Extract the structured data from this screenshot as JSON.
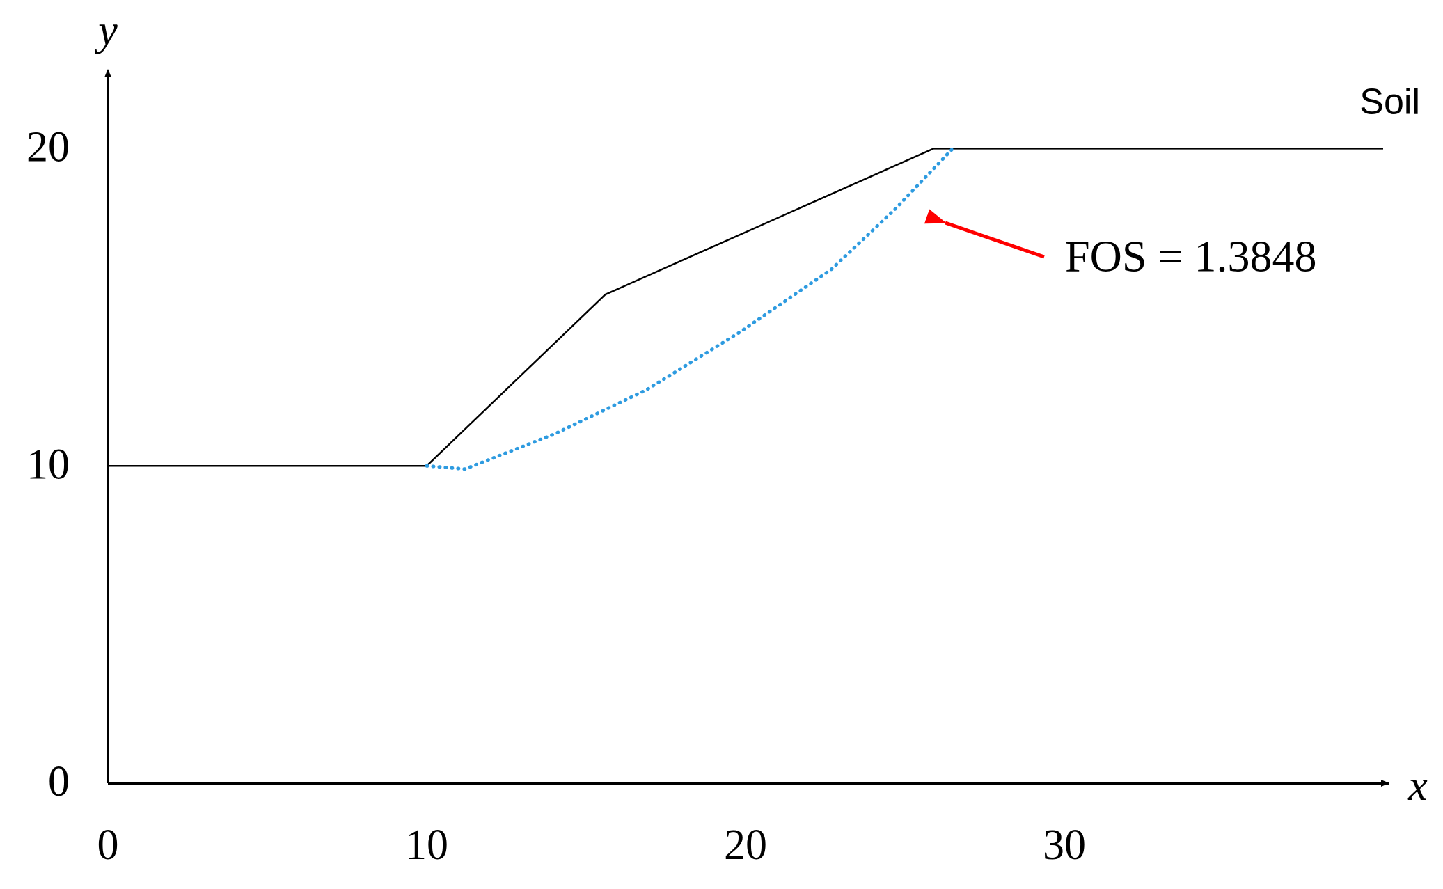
{
  "chart_data": {
    "type": "line",
    "xlabel": "x",
    "ylabel": "y",
    "xlim": [
      0,
      40
    ],
    "ylim": [
      0,
      22.4
    ],
    "xticks": [
      0,
      10,
      20,
      30
    ],
    "yticks": [
      0,
      10,
      20
    ],
    "grid": false,
    "annotation": "FOS = 1.3848",
    "series": [
      {
        "name": "Soil",
        "color": "#000000",
        "style": "solid",
        "x": [
          0,
          10,
          15.6,
          25.9,
          40
        ],
        "values": [
          10,
          10,
          15.4,
          20,
          20
        ]
      },
      {
        "color": "#2e9be0",
        "style": "dotted",
        "x": [
          10,
          11.2,
          14,
          16.9,
          19.8,
          22.7,
          24.7,
          26.5
        ],
        "values": [
          10,
          9.9,
          11,
          12.4,
          14.2,
          16.2,
          18.1,
          20
        ]
      }
    ]
  }
}
